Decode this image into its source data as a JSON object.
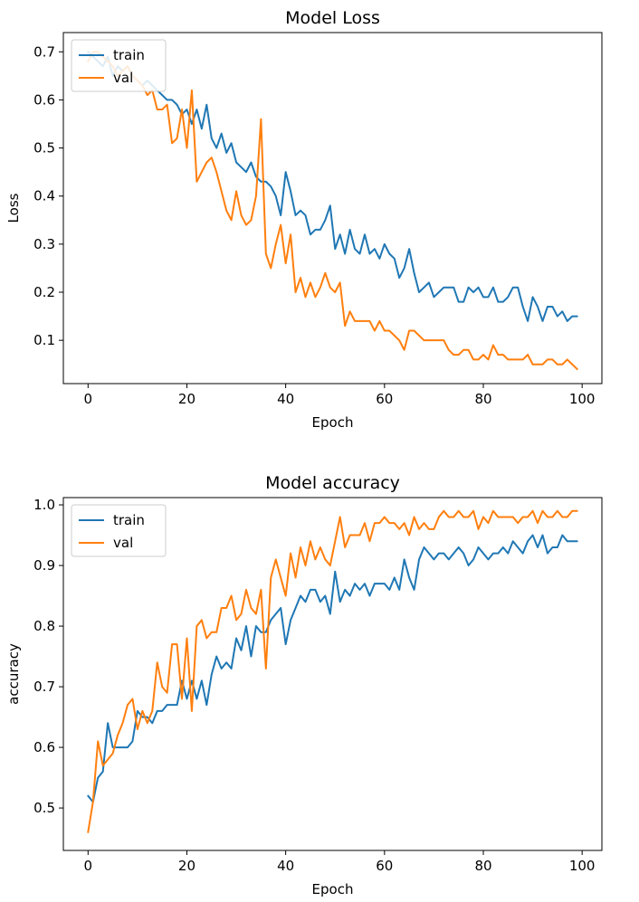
{
  "chart_data": [
    {
      "type": "line",
      "title": "Model Loss",
      "xlabel": "Epoch",
      "ylabel": "Loss",
      "xlim": [
        -5,
        104
      ],
      "ylim": [
        0.01,
        0.74
      ],
      "xticks": [
        0,
        20,
        40,
        60,
        80,
        100
      ],
      "yticks": [
        0.1,
        0.2,
        0.3,
        0.4,
        0.5,
        0.6,
        0.7
      ],
      "legend": "top-left",
      "grid": false,
      "series": [
        {
          "name": "train",
          "color": "#1f77b4",
          "values": [
            0.7,
            0.69,
            0.68,
            0.67,
            0.69,
            0.65,
            0.67,
            0.66,
            0.67,
            0.65,
            0.64,
            0.63,
            0.64,
            0.63,
            0.62,
            0.61,
            0.6,
            0.6,
            0.59,
            0.57,
            0.58,
            0.55,
            0.58,
            0.54,
            0.59,
            0.52,
            0.5,
            0.53,
            0.49,
            0.51,
            0.47,
            0.46,
            0.45,
            0.47,
            0.44,
            0.43,
            0.43,
            0.42,
            0.4,
            0.36,
            0.45,
            0.41,
            0.36,
            0.37,
            0.36,
            0.32,
            0.33,
            0.33,
            0.35,
            0.38,
            0.29,
            0.32,
            0.28,
            0.33,
            0.29,
            0.28,
            0.32,
            0.28,
            0.29,
            0.27,
            0.3,
            0.28,
            0.27,
            0.23,
            0.25,
            0.29,
            0.24,
            0.2,
            0.21,
            0.22,
            0.19,
            0.2,
            0.21,
            0.21,
            0.21,
            0.18,
            0.18,
            0.21,
            0.2,
            0.21,
            0.19,
            0.19,
            0.21,
            0.18,
            0.18,
            0.19,
            0.21,
            0.21,
            0.17,
            0.14,
            0.19,
            0.17,
            0.14,
            0.17,
            0.17,
            0.15,
            0.16,
            0.14,
            0.15,
            0.15
          ]
        },
        {
          "name": "val",
          "color": "#ff7f0e",
          "values": [
            0.68,
            0.7,
            0.7,
            0.69,
            0.68,
            0.67,
            0.65,
            0.66,
            0.67,
            0.65,
            0.64,
            0.63,
            0.61,
            0.62,
            0.58,
            0.58,
            0.59,
            0.51,
            0.52,
            0.58,
            0.5,
            0.62,
            0.43,
            0.45,
            0.47,
            0.48,
            0.45,
            0.41,
            0.37,
            0.35,
            0.41,
            0.36,
            0.34,
            0.35,
            0.4,
            0.56,
            0.28,
            0.25,
            0.3,
            0.34,
            0.26,
            0.32,
            0.2,
            0.23,
            0.19,
            0.22,
            0.19,
            0.21,
            0.24,
            0.21,
            0.2,
            0.22,
            0.13,
            0.16,
            0.14,
            0.14,
            0.14,
            0.14,
            0.12,
            0.14,
            0.12,
            0.12,
            0.11,
            0.1,
            0.08,
            0.12,
            0.12,
            0.11,
            0.1,
            0.1,
            0.1,
            0.1,
            0.1,
            0.08,
            0.07,
            0.07,
            0.08,
            0.08,
            0.06,
            0.06,
            0.07,
            0.06,
            0.09,
            0.07,
            0.07,
            0.06,
            0.06,
            0.06,
            0.06,
            0.07,
            0.05,
            0.05,
            0.05,
            0.06,
            0.06,
            0.05,
            0.05,
            0.06,
            0.05,
            0.04
          ]
        }
      ]
    },
    {
      "type": "line",
      "title": "Model accuracy",
      "xlabel": "Epoch",
      "ylabel": "accuracy",
      "xlim": [
        -5,
        104
      ],
      "ylim": [
        0.43,
        1.012
      ],
      "xticks": [
        0,
        20,
        40,
        60,
        80,
        100
      ],
      "yticks": [
        0.5,
        0.6,
        0.7,
        0.8,
        0.9,
        1.0
      ],
      "legend": "top-left",
      "grid": false,
      "series": [
        {
          "name": "train",
          "color": "#1f77b4",
          "values": [
            0.52,
            0.51,
            0.55,
            0.56,
            0.64,
            0.6,
            0.6,
            0.6,
            0.6,
            0.61,
            0.66,
            0.65,
            0.65,
            0.64,
            0.66,
            0.66,
            0.67,
            0.67,
            0.67,
            0.71,
            0.68,
            0.71,
            0.68,
            0.71,
            0.67,
            0.72,
            0.75,
            0.73,
            0.74,
            0.73,
            0.78,
            0.76,
            0.8,
            0.75,
            0.8,
            0.79,
            0.79,
            0.81,
            0.82,
            0.83,
            0.77,
            0.81,
            0.83,
            0.85,
            0.84,
            0.86,
            0.86,
            0.84,
            0.85,
            0.82,
            0.89,
            0.84,
            0.86,
            0.85,
            0.87,
            0.86,
            0.87,
            0.85,
            0.87,
            0.87,
            0.87,
            0.86,
            0.88,
            0.86,
            0.91,
            0.88,
            0.86,
            0.91,
            0.93,
            0.92,
            0.91,
            0.92,
            0.92,
            0.91,
            0.92,
            0.93,
            0.92,
            0.9,
            0.91,
            0.93,
            0.92,
            0.91,
            0.92,
            0.92,
            0.93,
            0.92,
            0.94,
            0.93,
            0.92,
            0.94,
            0.95,
            0.93,
            0.95,
            0.92,
            0.93,
            0.93,
            0.95,
            0.94,
            0.94,
            0.94
          ]
        },
        {
          "name": "val",
          "color": "#ff7f0e",
          "values": [
            0.46,
            0.51,
            0.61,
            0.57,
            0.58,
            0.59,
            0.62,
            0.64,
            0.67,
            0.68,
            0.63,
            0.66,
            0.64,
            0.66,
            0.74,
            0.7,
            0.69,
            0.77,
            0.77,
            0.68,
            0.78,
            0.66,
            0.8,
            0.81,
            0.78,
            0.79,
            0.79,
            0.83,
            0.83,
            0.85,
            0.81,
            0.82,
            0.86,
            0.83,
            0.82,
            0.86,
            0.73,
            0.88,
            0.91,
            0.88,
            0.85,
            0.92,
            0.88,
            0.93,
            0.9,
            0.94,
            0.91,
            0.93,
            0.91,
            0.9,
            0.94,
            0.98,
            0.93,
            0.95,
            0.95,
            0.95,
            0.97,
            0.94,
            0.97,
            0.97,
            0.98,
            0.97,
            0.97,
            0.96,
            0.97,
            0.95,
            0.98,
            0.96,
            0.97,
            0.96,
            0.96,
            0.98,
            0.99,
            0.98,
            0.98,
            0.99,
            0.98,
            0.98,
            0.99,
            0.96,
            0.98,
            0.97,
            0.99,
            0.98,
            0.98,
            0.98,
            0.98,
            0.97,
            0.98,
            0.98,
            0.99,
            0.97,
            0.99,
            0.98,
            0.98,
            0.99,
            0.98,
            0.98,
            0.99,
            0.99
          ]
        }
      ]
    }
  ]
}
